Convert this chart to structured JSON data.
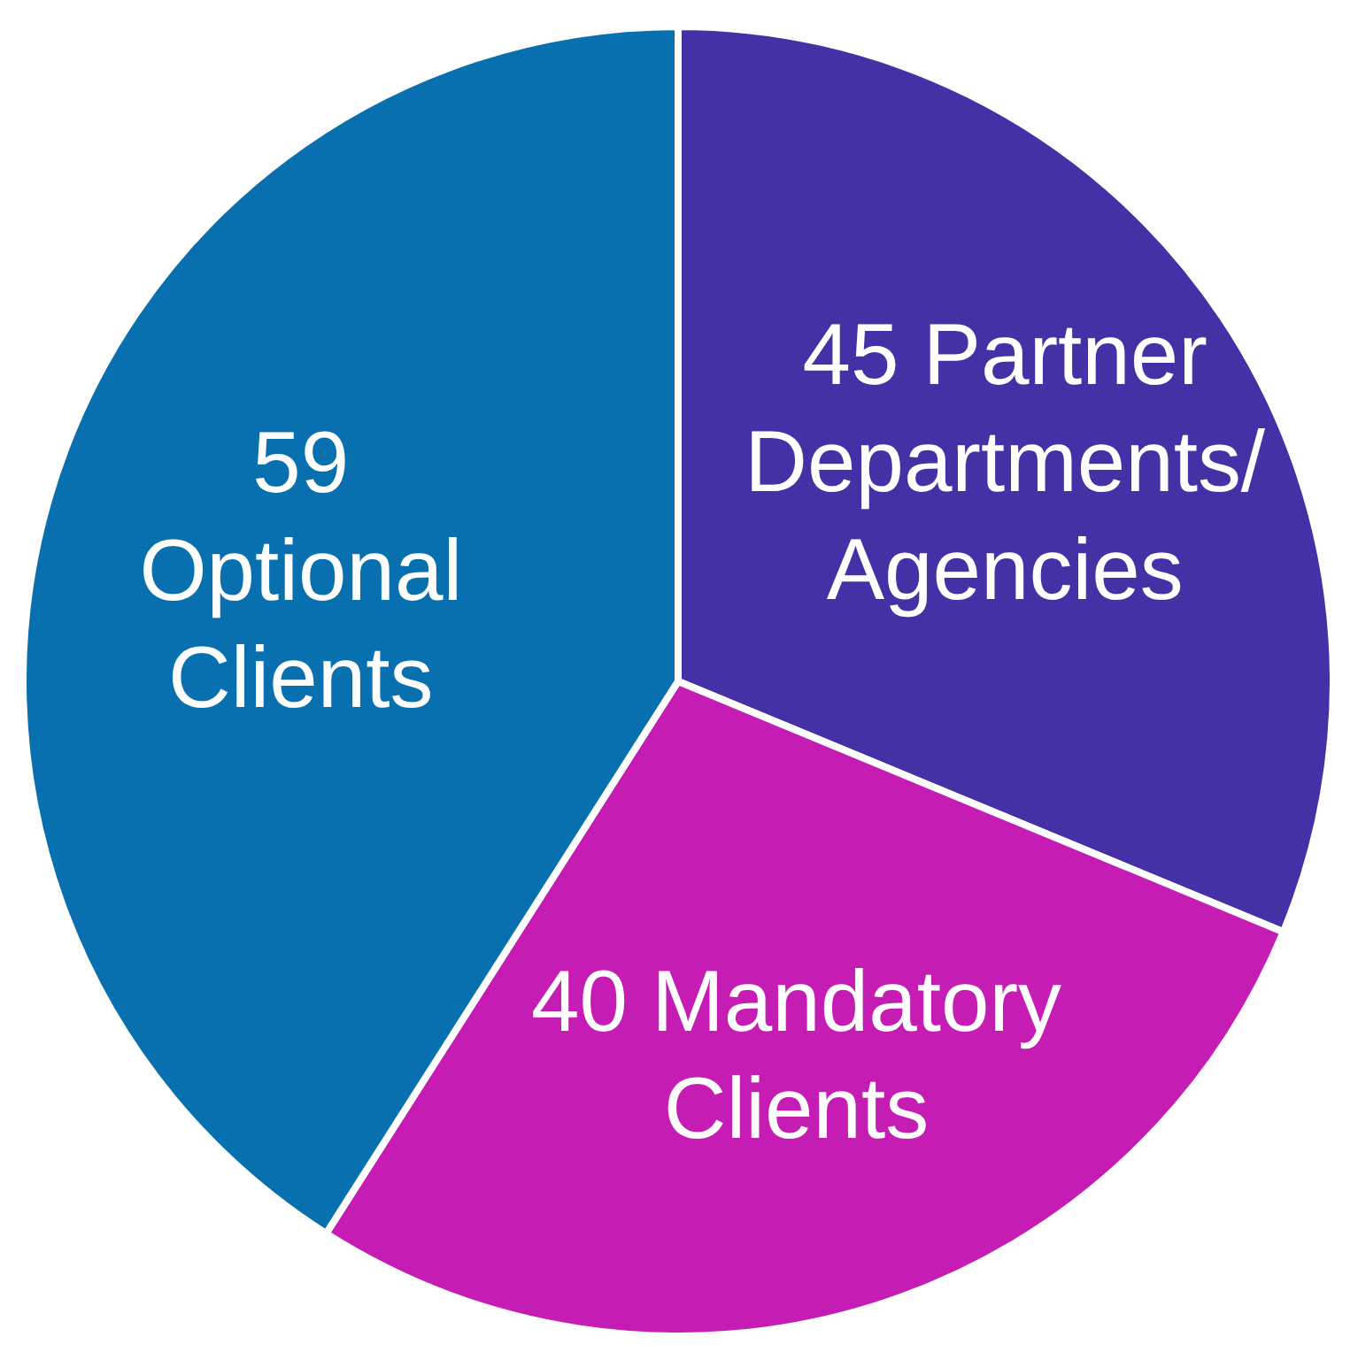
{
  "chart_data": {
    "type": "pie",
    "categories": [
      "Partner Departments/ Agencies",
      "Mandatory Clients",
      "Optional Clients"
    ],
    "values": [
      45,
      40,
      59
    ],
    "colors": [
      "#4530a5",
      "#c51db3",
      "#0870ae"
    ],
    "data_labels": true
  }
}
